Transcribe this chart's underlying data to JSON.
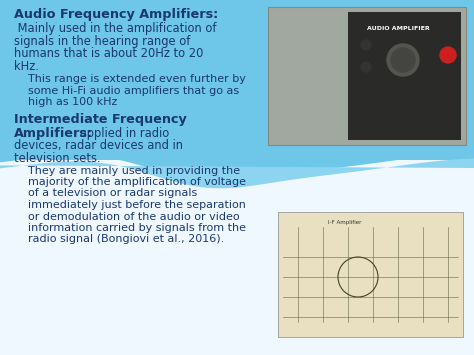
{
  "bg_blue": "#6ec6e8",
  "bg_white": "#f0f8ff",
  "bg_light_blue": "#ddf0fa",
  "wave_color": "#8dd4f0",
  "text_dark_blue": "#1a3870",
  "text_medium_blue": "#2255a0",
  "section1_bold": "Audio Frequency Amplifiers:",
  "section1_body_line1": " Mainly used in the amplification of",
  "section1_body_line2": "signals in the hearing range of",
  "section1_body_line3": "humans that is about 20Hz to 20",
  "section1_body_line4": "kHz.",
  "section1_indent_line1": "    This range is extended even further by",
  "section1_indent_line2": "    some Hi-Fi audio amplifiers that go as",
  "section1_indent_line3": "    high as 100 kHz",
  "section2_bold_line1": "Intermediate Frequency",
  "section2_bold_line2": "Amplifiers:",
  "section2_body_inline": " applied in radio",
  "section2_body_line2": "devices, radar devices and in",
  "section2_body_line3": "television sets.",
  "section2_indent_line1": "    They are mainly used in providing the",
  "section2_indent_line2": "    majority of the amplification of voltage",
  "section2_indent_line3": "    of a television or radar signals",
  "section2_indent_line4": "    immediately just before the separation",
  "section2_indent_line5": "    or demodulation of the audio or video",
  "section2_indent_line6": "    information carried by signals from the",
  "section2_indent_line7": "    radio signal (Bongiovi et al., 2016).",
  "img1_label": "AUDIO AMPLIFIER",
  "img2_label": "I-F Amplifier"
}
